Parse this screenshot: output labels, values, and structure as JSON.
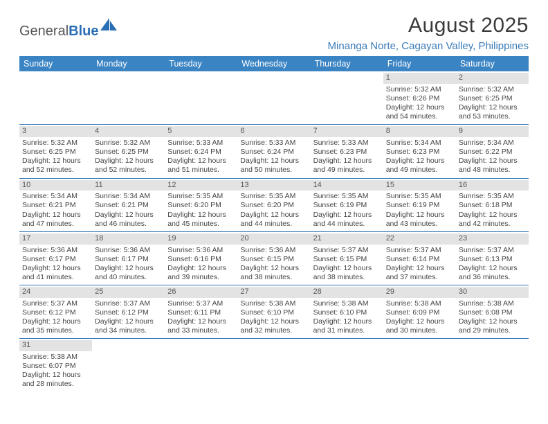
{
  "brand": {
    "part1": "General",
    "part2": "Blue"
  },
  "title": "August 2025",
  "location": "Minanga Norte, Cagayan Valley, Philippines",
  "colors": {
    "header_bg": "#3b84c4",
    "header_text": "#ffffff",
    "accent": "#2a6fb5",
    "daynum_bg": "#e3e3e3",
    "body_text": "#444444",
    "location_text": "#3a7ab8"
  },
  "weekdays": [
    "Sunday",
    "Monday",
    "Tuesday",
    "Wednesday",
    "Thursday",
    "Friday",
    "Saturday"
  ],
  "weeks": [
    [
      {
        "n": "",
        "sr": "",
        "ss": "",
        "dl": ""
      },
      {
        "n": "",
        "sr": "",
        "ss": "",
        "dl": ""
      },
      {
        "n": "",
        "sr": "",
        "ss": "",
        "dl": ""
      },
      {
        "n": "",
        "sr": "",
        "ss": "",
        "dl": ""
      },
      {
        "n": "",
        "sr": "",
        "ss": "",
        "dl": ""
      },
      {
        "n": "1",
        "sr": "Sunrise: 5:32 AM",
        "ss": "Sunset: 6:26 PM",
        "dl": "Daylight: 12 hours and 54 minutes."
      },
      {
        "n": "2",
        "sr": "Sunrise: 5:32 AM",
        "ss": "Sunset: 6:25 PM",
        "dl": "Daylight: 12 hours and 53 minutes."
      }
    ],
    [
      {
        "n": "3",
        "sr": "Sunrise: 5:32 AM",
        "ss": "Sunset: 6:25 PM",
        "dl": "Daylight: 12 hours and 52 minutes."
      },
      {
        "n": "4",
        "sr": "Sunrise: 5:32 AM",
        "ss": "Sunset: 6:25 PM",
        "dl": "Daylight: 12 hours and 52 minutes."
      },
      {
        "n": "5",
        "sr": "Sunrise: 5:33 AM",
        "ss": "Sunset: 6:24 PM",
        "dl": "Daylight: 12 hours and 51 minutes."
      },
      {
        "n": "6",
        "sr": "Sunrise: 5:33 AM",
        "ss": "Sunset: 6:24 PM",
        "dl": "Daylight: 12 hours and 50 minutes."
      },
      {
        "n": "7",
        "sr": "Sunrise: 5:33 AM",
        "ss": "Sunset: 6:23 PM",
        "dl": "Daylight: 12 hours and 49 minutes."
      },
      {
        "n": "8",
        "sr": "Sunrise: 5:34 AM",
        "ss": "Sunset: 6:23 PM",
        "dl": "Daylight: 12 hours and 49 minutes."
      },
      {
        "n": "9",
        "sr": "Sunrise: 5:34 AM",
        "ss": "Sunset: 6:22 PM",
        "dl": "Daylight: 12 hours and 48 minutes."
      }
    ],
    [
      {
        "n": "10",
        "sr": "Sunrise: 5:34 AM",
        "ss": "Sunset: 6:21 PM",
        "dl": "Daylight: 12 hours and 47 minutes."
      },
      {
        "n": "11",
        "sr": "Sunrise: 5:34 AM",
        "ss": "Sunset: 6:21 PM",
        "dl": "Daylight: 12 hours and 46 minutes."
      },
      {
        "n": "12",
        "sr": "Sunrise: 5:35 AM",
        "ss": "Sunset: 6:20 PM",
        "dl": "Daylight: 12 hours and 45 minutes."
      },
      {
        "n": "13",
        "sr": "Sunrise: 5:35 AM",
        "ss": "Sunset: 6:20 PM",
        "dl": "Daylight: 12 hours and 44 minutes."
      },
      {
        "n": "14",
        "sr": "Sunrise: 5:35 AM",
        "ss": "Sunset: 6:19 PM",
        "dl": "Daylight: 12 hours and 44 minutes."
      },
      {
        "n": "15",
        "sr": "Sunrise: 5:35 AM",
        "ss": "Sunset: 6:19 PM",
        "dl": "Daylight: 12 hours and 43 minutes."
      },
      {
        "n": "16",
        "sr": "Sunrise: 5:35 AM",
        "ss": "Sunset: 6:18 PM",
        "dl": "Daylight: 12 hours and 42 minutes."
      }
    ],
    [
      {
        "n": "17",
        "sr": "Sunrise: 5:36 AM",
        "ss": "Sunset: 6:17 PM",
        "dl": "Daylight: 12 hours and 41 minutes."
      },
      {
        "n": "18",
        "sr": "Sunrise: 5:36 AM",
        "ss": "Sunset: 6:17 PM",
        "dl": "Daylight: 12 hours and 40 minutes."
      },
      {
        "n": "19",
        "sr": "Sunrise: 5:36 AM",
        "ss": "Sunset: 6:16 PM",
        "dl": "Daylight: 12 hours and 39 minutes."
      },
      {
        "n": "20",
        "sr": "Sunrise: 5:36 AM",
        "ss": "Sunset: 6:15 PM",
        "dl": "Daylight: 12 hours and 38 minutes."
      },
      {
        "n": "21",
        "sr": "Sunrise: 5:37 AM",
        "ss": "Sunset: 6:15 PM",
        "dl": "Daylight: 12 hours and 38 minutes."
      },
      {
        "n": "22",
        "sr": "Sunrise: 5:37 AM",
        "ss": "Sunset: 6:14 PM",
        "dl": "Daylight: 12 hours and 37 minutes."
      },
      {
        "n": "23",
        "sr": "Sunrise: 5:37 AM",
        "ss": "Sunset: 6:13 PM",
        "dl": "Daylight: 12 hours and 36 minutes."
      }
    ],
    [
      {
        "n": "24",
        "sr": "Sunrise: 5:37 AM",
        "ss": "Sunset: 6:12 PM",
        "dl": "Daylight: 12 hours and 35 minutes."
      },
      {
        "n": "25",
        "sr": "Sunrise: 5:37 AM",
        "ss": "Sunset: 6:12 PM",
        "dl": "Daylight: 12 hours and 34 minutes."
      },
      {
        "n": "26",
        "sr": "Sunrise: 5:37 AM",
        "ss": "Sunset: 6:11 PM",
        "dl": "Daylight: 12 hours and 33 minutes."
      },
      {
        "n": "27",
        "sr": "Sunrise: 5:38 AM",
        "ss": "Sunset: 6:10 PM",
        "dl": "Daylight: 12 hours and 32 minutes."
      },
      {
        "n": "28",
        "sr": "Sunrise: 5:38 AM",
        "ss": "Sunset: 6:10 PM",
        "dl": "Daylight: 12 hours and 31 minutes."
      },
      {
        "n": "29",
        "sr": "Sunrise: 5:38 AM",
        "ss": "Sunset: 6:09 PM",
        "dl": "Daylight: 12 hours and 30 minutes."
      },
      {
        "n": "30",
        "sr": "Sunrise: 5:38 AM",
        "ss": "Sunset: 6:08 PM",
        "dl": "Daylight: 12 hours and 29 minutes."
      }
    ],
    [
      {
        "n": "31",
        "sr": "Sunrise: 5:38 AM",
        "ss": "Sunset: 6:07 PM",
        "dl": "Daylight: 12 hours and 28 minutes."
      },
      {
        "n": "",
        "sr": "",
        "ss": "",
        "dl": ""
      },
      {
        "n": "",
        "sr": "",
        "ss": "",
        "dl": ""
      },
      {
        "n": "",
        "sr": "",
        "ss": "",
        "dl": ""
      },
      {
        "n": "",
        "sr": "",
        "ss": "",
        "dl": ""
      },
      {
        "n": "",
        "sr": "",
        "ss": "",
        "dl": ""
      },
      {
        "n": "",
        "sr": "",
        "ss": "",
        "dl": ""
      }
    ]
  ]
}
